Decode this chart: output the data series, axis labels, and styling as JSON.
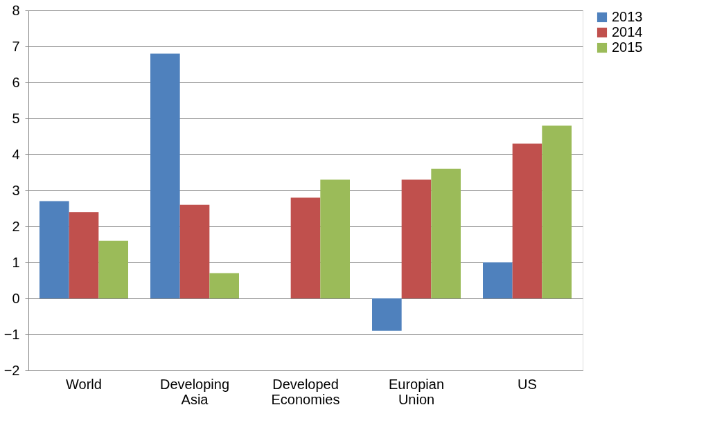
{
  "chart_data": {
    "type": "bar",
    "categories": [
      "World",
      "Developing Asia",
      "Developed Economies",
      "Europian Union",
      "US"
    ],
    "series": [
      {
        "name": "2013",
        "color": "#4f81bd",
        "values": [
          2.7,
          6.8,
          null,
          -0.9,
          1.0
        ]
      },
      {
        "name": "2014",
        "color": "#c0504d",
        "values": [
          2.4,
          2.6,
          2.8,
          3.3,
          4.3
        ]
      },
      {
        "name": "2015",
        "color": "#9bbb59",
        "values": [
          1.6,
          0.7,
          3.3,
          3.6,
          4.8
        ]
      }
    ],
    "ylim": [
      -2,
      8
    ],
    "yticks": [
      -2,
      -1,
      0,
      1,
      2,
      3,
      4,
      5,
      6,
      7,
      8
    ],
    "grid": "y",
    "legend": "right"
  }
}
